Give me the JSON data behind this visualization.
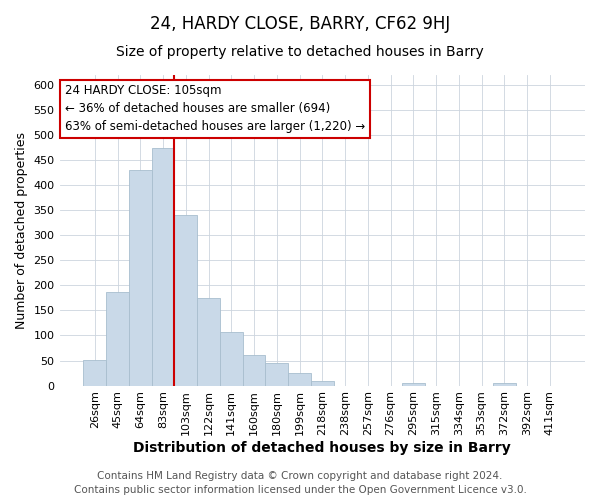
{
  "title": "24, HARDY CLOSE, BARRY, CF62 9HJ",
  "subtitle": "Size of property relative to detached houses in Barry",
  "xlabel": "Distribution of detached houses by size in Barry",
  "ylabel": "Number of detached properties",
  "bar_labels": [
    "26sqm",
    "45sqm",
    "64sqm",
    "83sqm",
    "103sqm",
    "122sqm",
    "141sqm",
    "160sqm",
    "180sqm",
    "199sqm",
    "218sqm",
    "238sqm",
    "257sqm",
    "276sqm",
    "295sqm",
    "315sqm",
    "334sqm",
    "353sqm",
    "372sqm",
    "392sqm",
    "411sqm"
  ],
  "bar_values": [
    52,
    187,
    430,
    475,
    340,
    175,
    107,
    62,
    46,
    25,
    10,
    0,
    0,
    0,
    5,
    0,
    0,
    0,
    5,
    0,
    0
  ],
  "bar_color": "#c9d9e8",
  "bar_edge_color": "#a8bece",
  "vline_x": 4.0,
  "vline_color": "#cc0000",
  "ylim": [
    0,
    620
  ],
  "yticks": [
    0,
    50,
    100,
    150,
    200,
    250,
    300,
    350,
    400,
    450,
    500,
    550,
    600
  ],
  "annotation_line1": "24 HARDY CLOSE: 105sqm",
  "annotation_line2": "← 36% of detached houses are smaller (694)",
  "annotation_line3": "63% of semi-detached houses are larger (1,220) →",
  "annotation_box_color": "#ffffff",
  "annotation_box_edge": "#cc0000",
  "footer1": "Contains HM Land Registry data © Crown copyright and database right 2024.",
  "footer2": "Contains public sector information licensed under the Open Government Licence v3.0.",
  "title_fontsize": 12,
  "subtitle_fontsize": 10,
  "xlabel_fontsize": 10,
  "ylabel_fontsize": 9,
  "tick_fontsize": 8,
  "annotation_fontsize": 8.5,
  "footer_fontsize": 7.5
}
